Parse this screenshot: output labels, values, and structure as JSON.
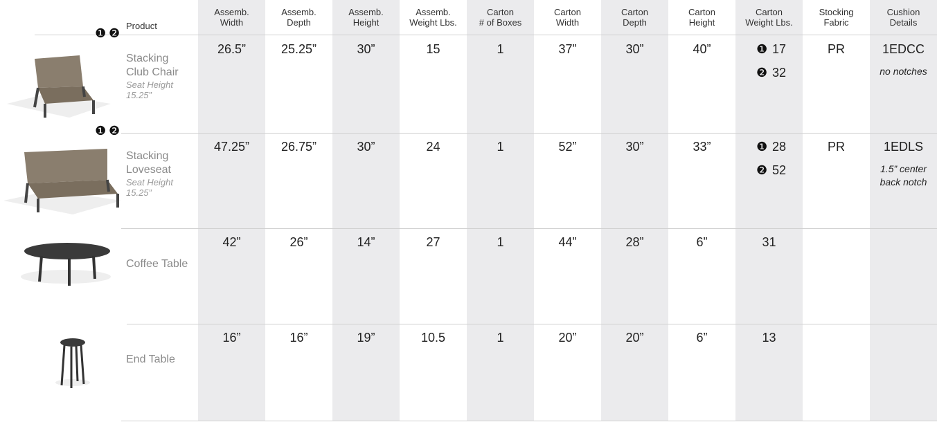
{
  "table": {
    "header": {
      "product": "Product",
      "columns": [
        [
          "Assemb.",
          "Width"
        ],
        [
          "Assemb.",
          "Depth"
        ],
        [
          "Assemb.",
          "Height"
        ],
        [
          "Assemb.",
          "Weight Lbs."
        ],
        [
          "Carton",
          "# of Boxes"
        ],
        [
          "Carton",
          "Width"
        ],
        [
          "Carton",
          "Depth"
        ],
        [
          "Carton",
          "Height"
        ],
        [
          "Carton",
          "Weight Lbs."
        ],
        [
          "Stocking",
          "Fabric"
        ],
        [
          "Cushion",
          "Details"
        ]
      ]
    },
    "rows": [
      {
        "badges": [
          "❶",
          "❷"
        ],
        "name": [
          "Stacking",
          "Club Chair"
        ],
        "seat_height": [
          "Seat Height",
          "15.25”"
        ],
        "cells": [
          "26.5”",
          "25.25”",
          "30”",
          "15",
          "1",
          "37”",
          "30”",
          "40”",
          [
            {
              "badge": "❶",
              "value": "17"
            },
            {
              "badge": "❷",
              "value": "32"
            }
          ],
          "PR",
          {
            "code": "1EDCC",
            "note": [
              "no notches"
            ]
          }
        ]
      },
      {
        "badges": [
          "❶",
          "❷"
        ],
        "name": [
          "Stacking",
          "Loveseat"
        ],
        "seat_height": [
          "Seat Height",
          "15.25”"
        ],
        "cells": [
          "47.25”",
          "26.75”",
          "30”",
          "24",
          "1",
          "52”",
          "30”",
          "33”",
          [
            {
              "badge": "❶",
              "value": "28"
            },
            {
              "badge": "❷",
              "value": "52"
            }
          ],
          "PR",
          {
            "code": "1EDLS",
            "note": [
              "1.5” center",
              "back notch"
            ]
          }
        ]
      },
      {
        "name": [
          "Coffee Table"
        ],
        "cells": [
          "42”",
          "26”",
          "14”",
          "27",
          "1",
          "44”",
          "28”",
          "6”",
          "31"
        ]
      },
      {
        "name": [
          "End Table"
        ],
        "cells": [
          "16”",
          "16”",
          "19”",
          "10.5",
          "1",
          "20”",
          "20”",
          "6”",
          "13"
        ]
      }
    ]
  }
}
